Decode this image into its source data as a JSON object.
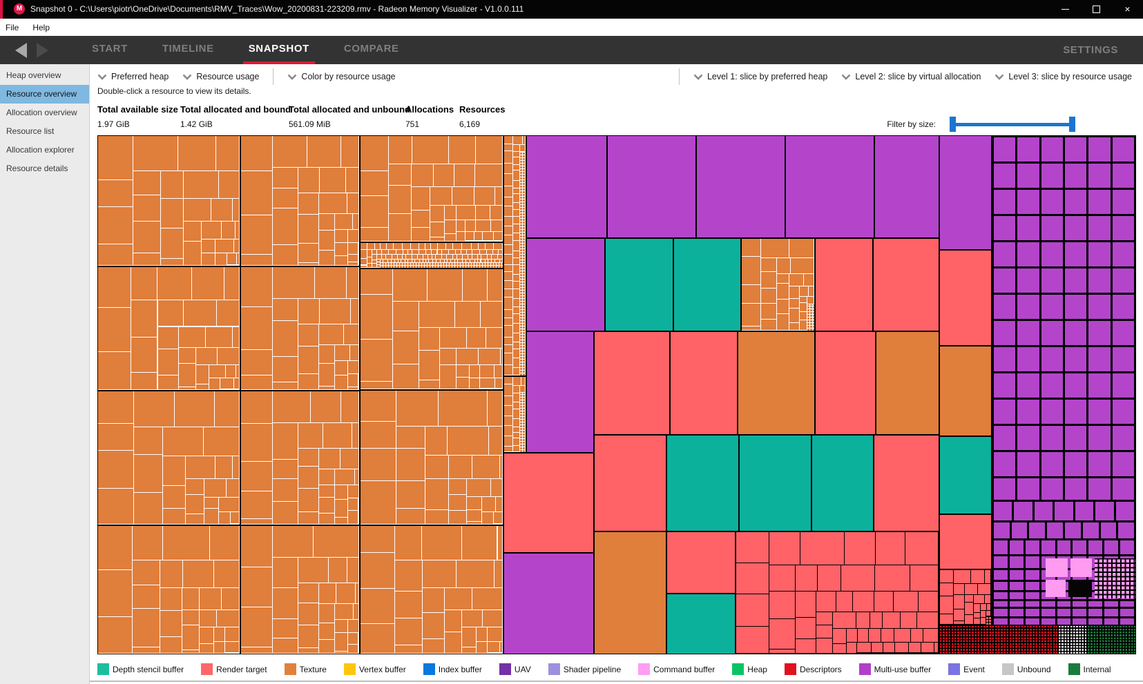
{
  "window": {
    "title": "Snapshot 0 - C:\\Users\\piotr\\OneDrive\\Documents\\RMV_Traces\\Wow_20200831-223209.rmv - Radeon Memory Visualizer - V1.0.0.111",
    "logo_letter": "M",
    "controls": {
      "close": "×"
    }
  },
  "menu": {
    "items": [
      "File",
      "Help"
    ]
  },
  "nav": {
    "tabs": [
      {
        "label": "START",
        "active": false
      },
      {
        "label": "TIMELINE",
        "active": false
      },
      {
        "label": "SNAPSHOT",
        "active": true
      },
      {
        "label": "COMPARE",
        "active": false
      }
    ],
    "settings_label": "SETTINGS"
  },
  "sidebar": {
    "items": [
      {
        "label": "Heap overview",
        "selected": false
      },
      {
        "label": "Resource overview",
        "selected": true
      },
      {
        "label": "Allocation overview",
        "selected": false
      },
      {
        "label": "Resource list",
        "selected": false
      },
      {
        "label": "Allocation explorer",
        "selected": false
      },
      {
        "label": "Resource details",
        "selected": false
      }
    ]
  },
  "toolbar": {
    "filters": [
      {
        "label": "Preferred heap"
      },
      {
        "label": "Resource usage"
      },
      {
        "label": "Color by resource usage"
      }
    ],
    "slicing": [
      {
        "label": "Level 1: slice by preferred heap"
      },
      {
        "label": "Level 2: slice by virtual allocation"
      },
      {
        "label": "Level 3: slice by resource usage"
      }
    ],
    "hint": "Double-click a resource to view its details."
  },
  "stats": [
    {
      "label": "Total available size",
      "value": "1.97 GiB"
    },
    {
      "label": "Total allocated and bound",
      "value": "1.42 GiB"
    },
    {
      "label": "Total allocated and unbound",
      "value": "561.09 MiB"
    },
    {
      "label": "Allocations",
      "value": "751"
    },
    {
      "label": "Resources",
      "value": "6,169"
    }
  ],
  "filter": {
    "label": "Filter by size:"
  },
  "legend": [
    {
      "label": "Depth stencil buffer",
      "color": "#1fbd9f"
    },
    {
      "label": "Render target",
      "color": "#ff666b"
    },
    {
      "label": "Texture",
      "color": "#e0813b"
    },
    {
      "label": "Vertex buffer",
      "color": "#ffc60d"
    },
    {
      "label": "Index buffer",
      "color": "#0979dc"
    },
    {
      "label": "UAV",
      "color": "#7430a6"
    },
    {
      "label": "Shader pipeline",
      "color": "#9f90df"
    },
    {
      "label": "Command buffer",
      "color": "#ff9df3"
    },
    {
      "label": "Heap",
      "color": "#0ac464"
    },
    {
      "label": "Descriptors",
      "color": "#e1111e"
    },
    {
      "label": "Multi-use buffer",
      "color": "#b23fc8"
    },
    {
      "label": "Event",
      "color": "#7b73e1"
    },
    {
      "label": "Unbound",
      "color": "#c6c6c6"
    },
    {
      "label": "Internal",
      "color": "#197c3d"
    }
  ],
  "treemap": {
    "colors": {
      "texture": "#e07e3b",
      "render_target": "#ff6267",
      "depth_stencil": "#0cb19c",
      "multi_use": "#b445cb",
      "command_buffer": "#ff9bf1",
      "descriptors": "#de1420",
      "unbound": "#e8e8e8",
      "internal": "#1b7b3c"
    },
    "blocks": [
      [
        "tp",
        0,
        0,
        207,
        190
      ],
      [
        "tp",
        207,
        0,
        173,
        190
      ],
      [
        "tp",
        380,
        0,
        208,
        155
      ],
      [
        "tp",
        380,
        155,
        208,
        38
      ],
      [
        "tp",
        0,
        190,
        207,
        180
      ],
      [
        "tp",
        207,
        190,
        173,
        180
      ],
      [
        "tp",
        380,
        193,
        208,
        176
      ],
      [
        "tp",
        0,
        370,
        207,
        195
      ],
      [
        "tp",
        207,
        370,
        173,
        195
      ],
      [
        "tp",
        380,
        369,
        208,
        196
      ],
      [
        "tp",
        0,
        565,
        207,
        187
      ],
      [
        "tp",
        207,
        565,
        173,
        187
      ],
      [
        "tp",
        380,
        565,
        208,
        187
      ],
      [
        "tp",
        588,
        0,
        33,
        349
      ],
      [
        "tp",
        588,
        349,
        33,
        111
      ],
      [
        "pu",
        621,
        0,
        117,
        149
      ],
      [
        "pu",
        738,
        0,
        129,
        149
      ],
      [
        "pu",
        867,
        0,
        129,
        149
      ],
      [
        "pu",
        996,
        0,
        129,
        149
      ],
      [
        "pu",
        1125,
        0,
        94,
        149
      ],
      [
        "pu",
        621,
        149,
        114,
        135
      ],
      [
        "te",
        735,
        149,
        99,
        135
      ],
      [
        "te",
        834,
        149,
        98,
        135
      ],
      [
        "tp",
        932,
        149,
        107,
        135
      ],
      [
        "sa",
        1039,
        149,
        84,
        135
      ],
      [
        "sa",
        1123,
        149,
        96,
        135
      ],
      [
        "pu",
        621,
        284,
        98,
        176
      ],
      [
        "sa",
        719,
        284,
        110,
        150
      ],
      [
        "sa",
        829,
        284,
        98,
        150
      ],
      [
        "or",
        927,
        284,
        112,
        150
      ],
      [
        "sa",
        1039,
        284,
        88,
        150
      ],
      [
        "or",
        1127,
        284,
        92,
        150
      ],
      [
        "sa",
        588,
        460,
        131,
        145
      ],
      [
        "pu",
        588,
        605,
        131,
        147
      ],
      [
        "sa",
        719,
        434,
        105,
        140
      ],
      [
        "te",
        824,
        434,
        105,
        140
      ],
      [
        "te",
        929,
        434,
        105,
        140
      ],
      [
        "te",
        1034,
        434,
        90,
        140
      ],
      [
        "sa",
        1124,
        434,
        95,
        140
      ],
      [
        "or",
        719,
        574,
        105,
        178
      ],
      [
        "sa",
        824,
        574,
        100,
        90
      ],
      [
        "te",
        824,
        664,
        100,
        88
      ],
      [
        "sp",
        924,
        574,
        295,
        178
      ],
      [
        "pu",
        1219,
        0,
        76,
        166
      ],
      [
        "sa",
        1219,
        166,
        76,
        139
      ],
      [
        "or",
        1219,
        305,
        76,
        131
      ],
      [
        "te",
        1219,
        436,
        76,
        113
      ],
      [
        "sa",
        1219,
        549,
        76,
        80
      ],
      [
        "sp",
        1219,
        629,
        76,
        81
      ],
      [
        "pg",
        1295,
        0,
        209,
        710
      ],
      [
        "pk",
        1372,
        612,
        34,
        29
      ],
      [
        "pk",
        1408,
        612,
        33,
        29
      ],
      [
        "pk",
        1372,
        643,
        31,
        27
      ],
      [
        "bk",
        1405,
        643,
        36,
        27
      ],
      [
        "ck",
        1443,
        612,
        61,
        60
      ],
      [
        "dr",
        1219,
        710,
        172,
        42
      ],
      [
        "dw",
        1391,
        710,
        42,
        42
      ],
      [
        "dg",
        1433,
        710,
        71,
        42
      ]
    ]
  }
}
